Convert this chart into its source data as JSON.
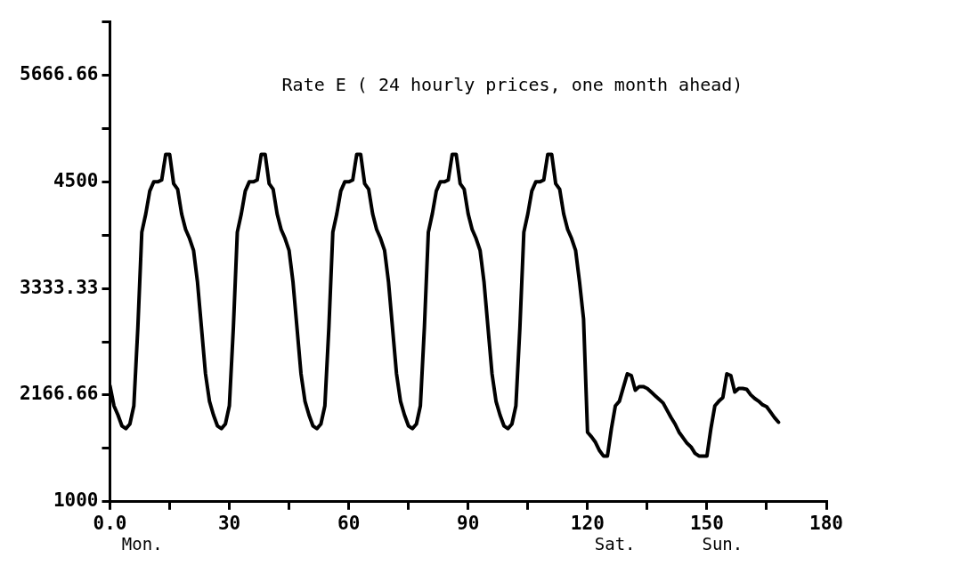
{
  "chart_data": {
    "type": "line",
    "title": "Rate E ( 24 hourly prices, one month ahead)",
    "x": [
      0,
      1,
      2,
      3,
      4,
      5,
      6,
      7,
      8,
      9,
      10,
      11,
      12,
      13,
      14,
      15,
      16,
      17,
      18,
      19,
      20,
      21,
      22,
      23,
      24,
      25,
      26,
      27,
      28,
      29,
      30,
      31,
      32,
      33,
      34,
      35,
      36,
      37,
      38,
      39,
      40,
      41,
      42,
      43,
      44,
      45,
      46,
      47,
      48,
      49,
      50,
      51,
      52,
      53,
      54,
      55,
      56,
      57,
      58,
      59,
      60,
      61,
      62,
      63,
      64,
      65,
      66,
      67,
      68,
      69,
      70,
      71,
      72,
      73,
      74,
      75,
      76,
      77,
      78,
      79,
      80,
      81,
      82,
      83,
      84,
      85,
      86,
      87,
      88,
      89,
      90,
      91,
      92,
      93,
      94,
      95,
      96,
      97,
      98,
      99,
      100,
      101,
      102,
      103,
      104,
      105,
      106,
      107,
      108,
      109,
      110,
      111,
      112,
      113,
      114,
      115,
      116,
      117,
      118,
      119,
      120,
      121,
      122,
      123,
      124,
      125,
      126,
      127,
      128,
      129,
      130,
      131,
      132,
      133,
      134,
      135,
      136,
      137,
      138,
      139,
      140,
      141,
      142,
      143,
      144,
      145,
      146,
      147,
      148,
      149,
      150,
      151,
      152,
      153,
      154,
      155,
      156,
      157,
      158,
      159,
      160,
      161,
      162,
      163,
      164,
      165,
      166,
      167,
      168
    ],
    "series": [
      {
        "color": "#000000",
        "values": [
          2270,
          2050,
          1950,
          1830,
          1800,
          1850,
          2050,
          2900,
          3950,
          4150,
          4400,
          4500,
          4500,
          4520,
          4800,
          4800,
          4480,
          4420,
          4150,
          3980,
          3880,
          3750,
          3400,
          2900,
          2400,
          2100,
          1950,
          1830,
          1800,
          1850,
          2050,
          2900,
          3950,
          4150,
          4400,
          4500,
          4500,
          4520,
          4800,
          4800,
          4480,
          4420,
          4150,
          3980,
          3880,
          3750,
          3400,
          2900,
          2400,
          2100,
          1950,
          1830,
          1800,
          1850,
          2050,
          2900,
          3950,
          4150,
          4400,
          4500,
          4500,
          4520,
          4800,
          4800,
          4480,
          4420,
          4150,
          3980,
          3880,
          3750,
          3400,
          2900,
          2400,
          2100,
          1950,
          1830,
          1800,
          1850,
          2050,
          2900,
          3950,
          4150,
          4400,
          4500,
          4500,
          4520,
          4800,
          4800,
          4480,
          4420,
          4150,
          3980,
          3880,
          3750,
          3400,
          2900,
          2400,
          2100,
          1950,
          1830,
          1800,
          1850,
          2050,
          2900,
          3950,
          4150,
          4400,
          4500,
          4500,
          4520,
          4800,
          4800,
          4480,
          4420,
          4150,
          3980,
          3880,
          3750,
          3400,
          3000,
          1760,
          1710,
          1650,
          1560,
          1500,
          1500,
          1800,
          2050,
          2100,
          2250,
          2400,
          2380,
          2220,
          2260,
          2260,
          2240,
          2200,
          2160,
          2120,
          2080,
          2000,
          1920,
          1850,
          1760,
          1700,
          1640,
          1600,
          1530,
          1500,
          1500,
          1500,
          1800,
          2050,
          2100,
          2140,
          2400,
          2380,
          2200,
          2240,
          2240,
          2230,
          2170,
          2130,
          2100,
          2060,
          2040,
          1980,
          1920,
          1870
        ]
      }
    ],
    "xlim": [
      0,
      180
    ],
    "xticks": [
      {
        "value": 0,
        "label": "0.0"
      },
      {
        "value": 15,
        "label": null
      },
      30,
      {
        "value": 45,
        "label": null
      },
      60,
      {
        "value": 75,
        "label": null
      },
      90,
      {
        "value": 105,
        "label": null
      },
      120,
      {
        "value": 135,
        "label": null
      },
      150,
      {
        "value": 165,
        "label": null
      },
      180
    ],
    "ylim": [
      1000,
      6250
    ],
    "yticks": [
      1000,
      {
        "value": 1583.33,
        "label": null
      },
      2166.66,
      {
        "value": 2750,
        "label": null
      },
      3333.33,
      {
        "value": 3916.66,
        "label": null
      },
      4500,
      {
        "value": 5083.33,
        "label": null
      },
      5666.66,
      {
        "value": 6250,
        "label": null
      }
    ],
    "annotations": [
      "Mon.",
      "Sat.",
      "Sun."
    ]
  }
}
